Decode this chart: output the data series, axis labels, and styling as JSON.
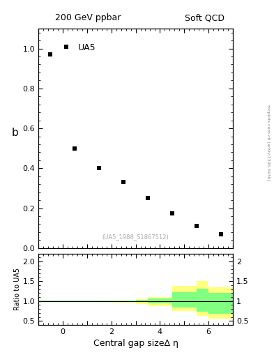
{
  "title_left": "200 GeV ppbar",
  "title_right": "Soft QCD",
  "ylabel_main": "b",
  "ylabel_ratio": "Ratio to UA5",
  "xlabel": "Central gap sizeΔ η",
  "annotation": "(UA5_1988_S1867512)",
  "right_label": "mcplots.cern.ch [arXiv:1306.3436]",
  "legend_label": "UA5",
  "data_x": [
    -0.5,
    0.5,
    1.5,
    2.5,
    3.5,
    4.5,
    5.5,
    6.5
  ],
  "data_y": [
    0.97,
    0.5,
    0.4,
    0.33,
    0.25,
    0.175,
    0.11,
    0.07
  ],
  "xlim": [
    -1,
    7
  ],
  "ylim_main": [
    0,
    1.1
  ],
  "main_yticks": [
    0,
    0.2,
    0.4,
    0.6,
    0.8,
    1.0
  ],
  "ylim_ratio": [
    0.4,
    2.2
  ],
  "ratio_yticks": [
    0.5,
    1.0,
    1.5,
    2.0
  ],
  "yellow_bins_x": [
    -1,
    0,
    1,
    2,
    3,
    3.5,
    4.5,
    5.5,
    6,
    7
  ],
  "yellow_bins_u": [
    1.02,
    1.02,
    1.02,
    1.02,
    1.05,
    1.1,
    1.38,
    1.5,
    1.35,
    1.35
  ],
  "yellow_bins_l": [
    0.98,
    0.98,
    0.97,
    0.96,
    0.93,
    0.88,
    0.75,
    0.62,
    0.55,
    0.55
  ],
  "green_bins_x": [
    -1,
    0,
    1,
    2,
    3,
    3.5,
    4.5,
    5.5,
    6,
    7
  ],
  "green_bins_u": [
    1.01,
    1.01,
    1.01,
    1.01,
    1.025,
    1.06,
    1.22,
    1.32,
    1.2,
    1.2
  ],
  "green_bins_l": [
    0.99,
    0.99,
    0.99,
    0.985,
    0.97,
    0.94,
    0.83,
    0.73,
    0.68,
    0.68
  ],
  "marker_color": "#000000",
  "marker_style": "s",
  "marker_size": 5,
  "yellow_color": "#ffff80",
  "green_color": "#80ff80",
  "bg_color": "#ffffff"
}
